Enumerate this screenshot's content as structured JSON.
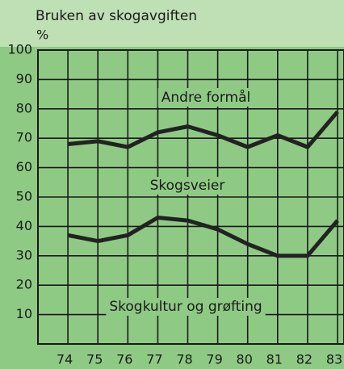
{
  "chart_data": {
    "type": "line",
    "title": "Bruken av skogavgiften",
    "y_label": "%",
    "categories": [
      "74",
      "75",
      "76",
      "77",
      "78",
      "79",
      "80",
      "81",
      "82",
      "83"
    ],
    "series": [
      {
        "color": "#222222",
        "values": [
          68,
          69,
          67,
          72,
          74,
          71,
          67,
          71,
          67,
          79
        ]
      },
      {
        "color": "#222222",
        "values": [
          37,
          35,
          37,
          43,
          42,
          39,
          34,
          30,
          30,
          42
        ]
      }
    ],
    "ylim": [
      0,
      100
    ],
    "yticks": [
      10,
      20,
      30,
      40,
      50,
      60,
      70,
      80,
      90,
      100
    ],
    "grid": true,
    "annotations": [
      "Andre formål",
      "Skogsveier",
      "Skogkultur og grøfting"
    ]
  }
}
